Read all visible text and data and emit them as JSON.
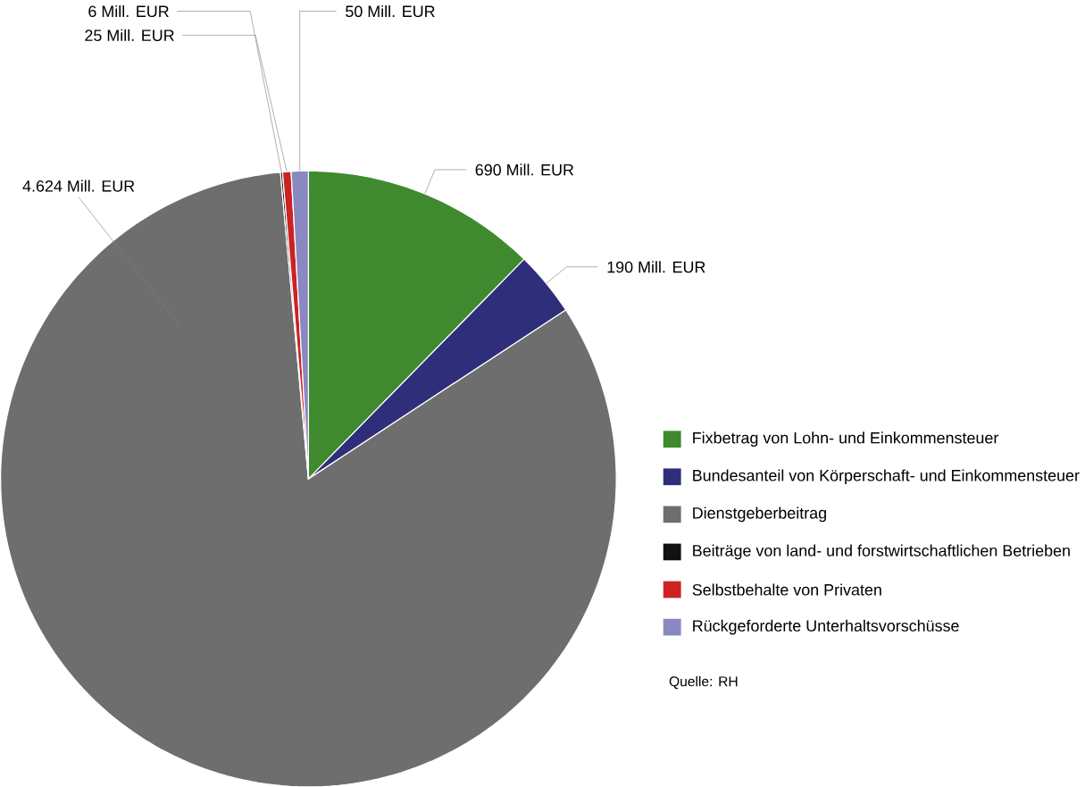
{
  "chart_data": {
    "type": "pie",
    "categories": [
      "Fixbetrag von Lohn- und Einkommensteuer",
      "Bundesanteil von Körperschaft- und Einkommensteuer",
      "Dienstgeberbeitrag",
      "Beiträge von land- und forstwirtschaftlichen Betrieben",
      "Selbstbehalte von Privaten",
      "Rückgeforderte Unterhaltsvorschüsse"
    ],
    "values": [
      690,
      190,
      4624,
      6,
      25,
      50
    ],
    "colors": [
      "#3f8a2e",
      "#2e2e7a",
      "#6e6e6e",
      "#111111",
      "#cc2222",
      "#8a88c0"
    ],
    "value_labels": [
      "690 Mill. EUR",
      "190 Mill. EUR",
      "4.624 Mill. EUR",
      "6 Mill. EUR",
      "25 Mill. EUR",
      "50 Mill. EUR"
    ],
    "legend": "right",
    "annotations": [
      "Quelle: RH"
    ]
  }
}
